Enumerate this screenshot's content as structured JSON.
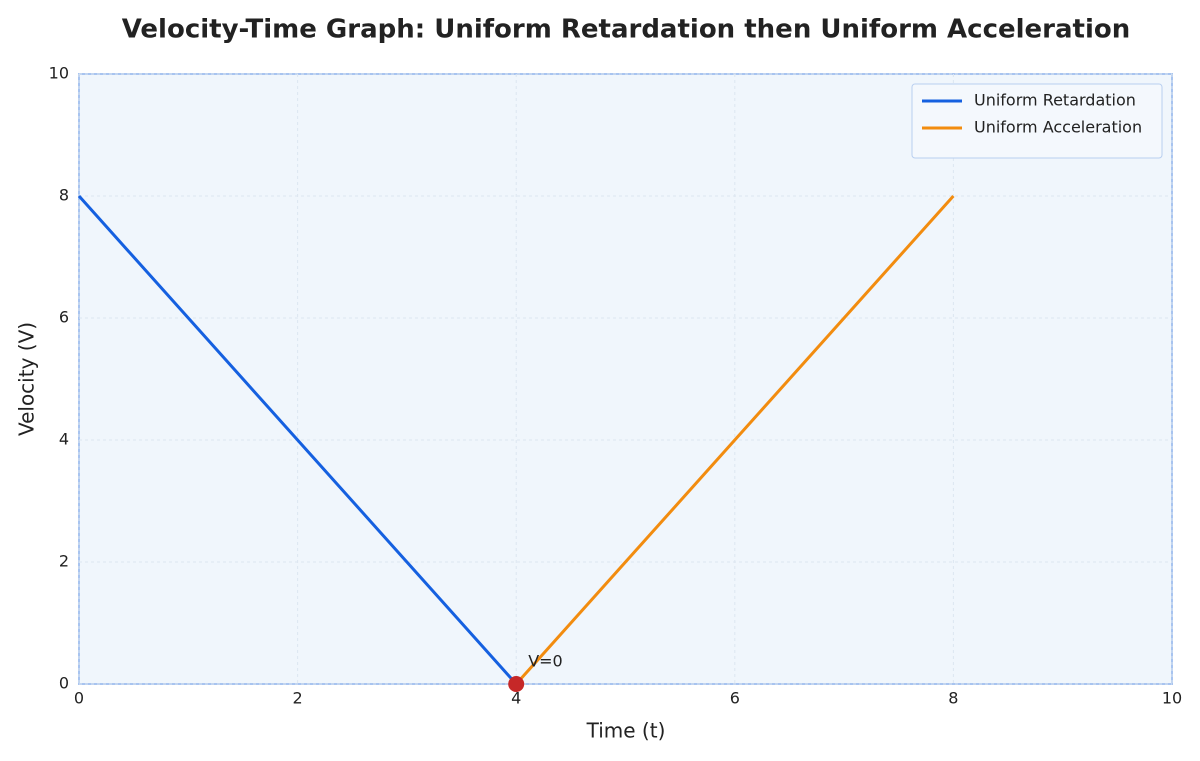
{
  "chart_data": {
    "type": "line",
    "title": "Velocity-Time Graph: Uniform Retardation then Uniform Acceleration",
    "x_label": "Time (t)",
    "y_label": "Velocity (V)",
    "series": [
      {
        "name": "Uniform Retardation",
        "color": "#1560e0",
        "x": [
          0,
          4
        ],
        "values": [
          8,
          0
        ]
      },
      {
        "name": "Uniform Acceleration",
        "color": "#f28c0f",
        "x": [
          4,
          8
        ],
        "values": [
          0,
          8
        ]
      }
    ],
    "annotations": [
      {
        "text": "V=0",
        "x": 4,
        "y": 0,
        "color": "#c62828"
      }
    ],
    "xlim": [
      0,
      10
    ],
    "xticks": [
      0,
      2,
      4,
      6,
      8,
      10
    ],
    "ylim": [
      0,
      10
    ],
    "yticks": [
      0,
      2,
      4,
      6,
      8,
      10
    ],
    "grid": true,
    "legend": "upper right"
  }
}
